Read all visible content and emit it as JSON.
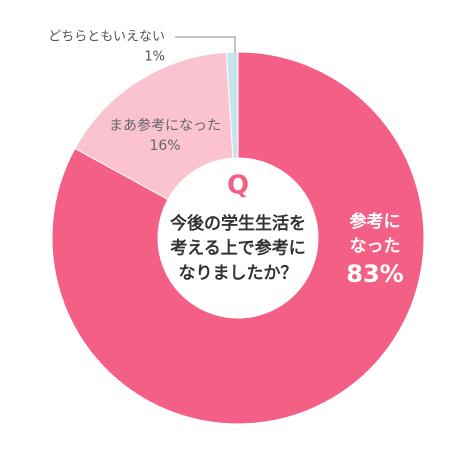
{
  "chart_data": {
    "type": "pie",
    "categories": [
      "参考に\nなった",
      "まあ参考になった",
      "どちらともいえない"
    ],
    "values": [
      83,
      16,
      1
    ],
    "value_labels": [
      "83%",
      "16%",
      "1%"
    ],
    "colors": [
      "#f45f85",
      "#fbc2d0",
      "#c6e4ec"
    ],
    "center": {
      "label": "Q",
      "question": "今後の学生生活を\n考える上で参考に\nなりましたか？"
    }
  }
}
